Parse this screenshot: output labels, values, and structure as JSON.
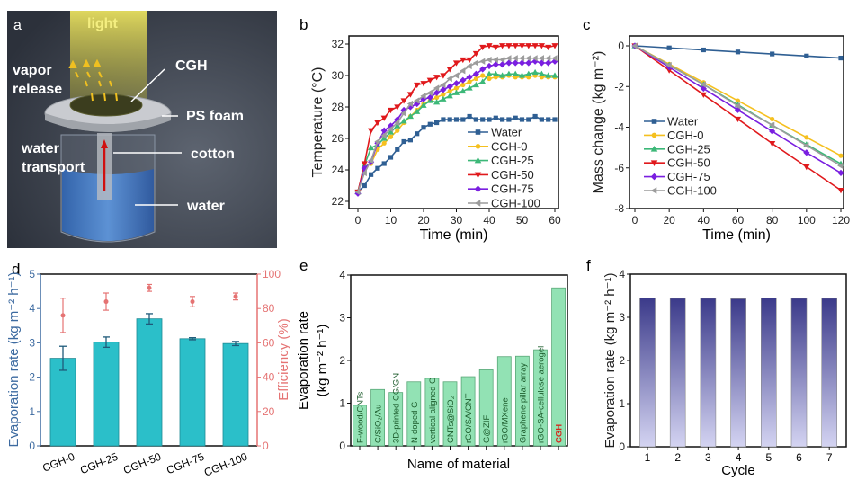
{
  "panel_letters": {
    "a": "a",
    "b": "b",
    "c": "c",
    "d": "d",
    "e": "e",
    "f": "f"
  },
  "diagram": {
    "light": "light",
    "vapor_release_1": "vapor",
    "vapor_release_2": "release",
    "cgh": "CGH",
    "ps_foam": "PS foam",
    "water_transport_1": "water",
    "water_transport_2": "transport",
    "cotton": "cotton",
    "water": "water"
  },
  "colors": {
    "Water": "#2f5f93",
    "CGH-0": "#f5c01f",
    "CGH-25": "#3cb878",
    "CGH-50": "#e0191c",
    "CGH-75": "#7a1fe0",
    "CGH-100": "#9c9c9c",
    "evap_bar": "#2bbfc9",
    "efficiency": "#e57373",
    "left_axis": "#3c6aa0",
    "comparison_bar": "#92e2b4",
    "comparison_text": "#1a5a2a",
    "highlight": "#d42a1e",
    "cycle_top": "#3b3a8a",
    "cycle_bottom": "#d4d4f2"
  },
  "chart_data": [
    {
      "id": "b",
      "type": "line",
      "xlabel": "Time (min)",
      "ylabel": "Temperature (°C)",
      "xlim": [
        0,
        60
      ],
      "ylim": [
        22,
        32
      ],
      "xticks": [
        "0",
        "10",
        "20",
        "30",
        "40",
        "50",
        "60"
      ],
      "yticks": [
        "22",
        "24",
        "26",
        "28",
        "30",
        "32"
      ],
      "legend": "bottom-right",
      "x": [
        0,
        2,
        4,
        6,
        8,
        10,
        12,
        14,
        16,
        18,
        20,
        22,
        24,
        26,
        28,
        30,
        32,
        34,
        36,
        38,
        40,
        42,
        44,
        46,
        48,
        50,
        52,
        54,
        56,
        58,
        60
      ],
      "series": [
        {
          "name": "Water",
          "marker": "square",
          "values": [
            22.6,
            23.0,
            23.7,
            24.1,
            24.4,
            24.8,
            25.3,
            25.8,
            25.9,
            26.3,
            26.7,
            26.9,
            27.0,
            27.2,
            27.2,
            27.2,
            27.2,
            27.4,
            27.2,
            27.2,
            27.2,
            27.3,
            27.2,
            27.2,
            27.3,
            27.2,
            27.2,
            27.4,
            27.2,
            27.2,
            27.2
          ]
        },
        {
          "name": "CGH-0",
          "marker": "circle",
          "values": [
            22.6,
            24.2,
            24.4,
            25.3,
            25.7,
            26.1,
            26.5,
            27.0,
            27.4,
            27.8,
            28.2,
            28.4,
            28.6,
            28.8,
            29.0,
            29.2,
            29.4,
            29.6,
            29.8,
            30.0,
            29.8,
            29.9,
            29.9,
            30.0,
            29.9,
            29.9,
            29.9,
            30.0,
            29.9,
            29.9,
            29.9
          ]
        },
        {
          "name": "CGH-25",
          "marker": "triangle-up",
          "values": [
            22.6,
            24.3,
            25.4,
            25.6,
            26.0,
            26.4,
            26.8,
            27.1,
            27.4,
            27.7,
            28.1,
            28.4,
            28.3,
            28.5,
            28.7,
            28.9,
            29.0,
            29.2,
            29.4,
            29.6,
            30.1,
            30.1,
            30.0,
            30.1,
            30.1,
            30.0,
            30.1,
            30.2,
            30.1,
            30.0,
            30.0
          ]
        },
        {
          "name": "CGH-50",
          "marker": "triangle-down",
          "values": [
            22.6,
            24.4,
            26.5,
            27.0,
            27.3,
            27.8,
            28.0,
            28.4,
            28.8,
            29.4,
            29.5,
            29.7,
            29.9,
            30.0,
            30.4,
            30.8,
            31.0,
            31.0,
            31.4,
            31.8,
            31.9,
            31.8,
            31.9,
            31.9,
            31.9,
            31.9,
            31.9,
            31.9,
            31.9,
            31.8,
            31.9
          ]
        },
        {
          "name": "CGH-75",
          "marker": "diamond",
          "values": [
            22.5,
            24.1,
            24.5,
            25.7,
            26.5,
            26.8,
            27.2,
            27.8,
            28.0,
            28.2,
            28.5,
            28.6,
            28.9,
            29.1,
            29.3,
            29.5,
            29.7,
            29.9,
            30.1,
            30.4,
            30.6,
            30.7,
            30.7,
            30.8,
            30.8,
            30.8,
            30.8,
            30.9,
            30.8,
            30.8,
            30.9
          ]
        },
        {
          "name": "CGH-100",
          "marker": "triangle-left",
          "values": [
            22.6,
            23.8,
            24.6,
            25.8,
            26.2,
            26.6,
            27.0,
            27.6,
            28.2,
            28.4,
            28.7,
            28.9,
            29.2,
            29.4,
            29.8,
            30.0,
            30.3,
            30.6,
            30.8,
            30.9,
            31.0,
            31.0,
            31.0,
            31.1,
            31.1,
            31.1,
            31.1,
            31.1,
            31.1,
            31.1,
            31.1
          ]
        }
      ]
    },
    {
      "id": "c",
      "type": "line",
      "xlabel": "Time (min)",
      "ylabel": "Mass change (kg m⁻²)",
      "xlim": [
        0,
        120
      ],
      "ylim": [
        -8,
        0.5
      ],
      "xticks": [
        "0",
        "20",
        "40",
        "60",
        "80",
        "100",
        "120"
      ],
      "yticks": [
        "0",
        "-2",
        "-4",
        "-6",
        "-8"
      ],
      "legend": "bottom-left",
      "x": [
        0,
        20,
        40,
        60,
        80,
        100,
        120
      ],
      "series": [
        {
          "name": "Water",
          "marker": "square",
          "values": [
            0,
            -0.1,
            -0.2,
            -0.3,
            -0.4,
            -0.5,
            -0.6
          ]
        },
        {
          "name": "CGH-0",
          "marker": "circle",
          "values": [
            0,
            -0.9,
            -1.8,
            -2.7,
            -3.6,
            -4.5,
            -5.4
          ]
        },
        {
          "name": "CGH-25",
          "marker": "triangle-up",
          "values": [
            0,
            -0.95,
            -1.9,
            -2.9,
            -3.9,
            -4.85,
            -5.8
          ]
        },
        {
          "name": "CGH-50",
          "marker": "triangle-down",
          "values": [
            0,
            -1.2,
            -2.4,
            -3.6,
            -4.8,
            -5.95,
            -7.1
          ]
        },
        {
          "name": "CGH-75",
          "marker": "diamond",
          "values": [
            0,
            -1.05,
            -2.1,
            -3.15,
            -4.2,
            -5.25,
            -6.25
          ]
        },
        {
          "name": "CGH-100",
          "marker": "triangle-left",
          "values": [
            0,
            -0.95,
            -1.9,
            -2.95,
            -3.9,
            -4.9,
            -5.9
          ]
        }
      ]
    },
    {
      "id": "d",
      "type": "bar",
      "ylabel": "Evaporation rate (kg m⁻² h⁻¹)",
      "y2label": "Efficiency (%)",
      "ylim": [
        0,
        5
      ],
      "y2lim": [
        0,
        100
      ],
      "yticks": [
        "0",
        "1",
        "2",
        "3",
        "4",
        "5"
      ],
      "y2ticks": [
        "0",
        "20",
        "40",
        "60",
        "80",
        "100"
      ],
      "categories": [
        "CGH-0",
        "CGH-25",
        "CGH-50",
        "CGH-75",
        "CGH-100"
      ],
      "values": [
        2.55,
        3.02,
        3.7,
        3.12,
        2.98
      ],
      "errors": [
        0.35,
        0.15,
        0.15,
        0.03,
        0.06
      ],
      "efficiency": [
        76,
        84,
        92,
        84,
        87
      ],
      "efficiency_errors": [
        10,
        5,
        2,
        3,
        2
      ]
    },
    {
      "id": "e",
      "type": "bar",
      "xlabel": "Name of material",
      "ylabel_1": "Evaporation rate",
      "ylabel_2": "(kg m⁻² h⁻¹)",
      "ylim": [
        0,
        4
      ],
      "yticks": [
        "0",
        "1",
        "2",
        "3",
        "4"
      ],
      "categories": [
        "F-wood/CNTs",
        "C/SiO₂/Au",
        "3D-printed CG/GN",
        "N-doped G",
        "vertical aligned G",
        "CNTs@SiO₂",
        "rGO/SA/CNT",
        "G@ZIF",
        "rGO/MXene",
        "Graphene pillar array",
        "rGO-SA-cellulose aerogel",
        "CGH"
      ],
      "values": [
        0.95,
        1.32,
        1.25,
        1.5,
        1.58,
        1.5,
        1.62,
        1.78,
        2.09,
        2.1,
        2.25,
        3.7
      ],
      "highlight": "CGH"
    },
    {
      "id": "f",
      "type": "bar",
      "xlabel": "Cycle",
      "ylabel": "Evaporation rate (kg m⁻² h⁻¹)",
      "ylim": [
        0,
        4
      ],
      "yticks": [
        "0",
        "1",
        "2",
        "3",
        "4"
      ],
      "categories": [
        "1",
        "2",
        "3",
        "4",
        "5",
        "6",
        "7"
      ],
      "values": [
        3.45,
        3.44,
        3.44,
        3.43,
        3.45,
        3.44,
        3.44
      ]
    }
  ]
}
